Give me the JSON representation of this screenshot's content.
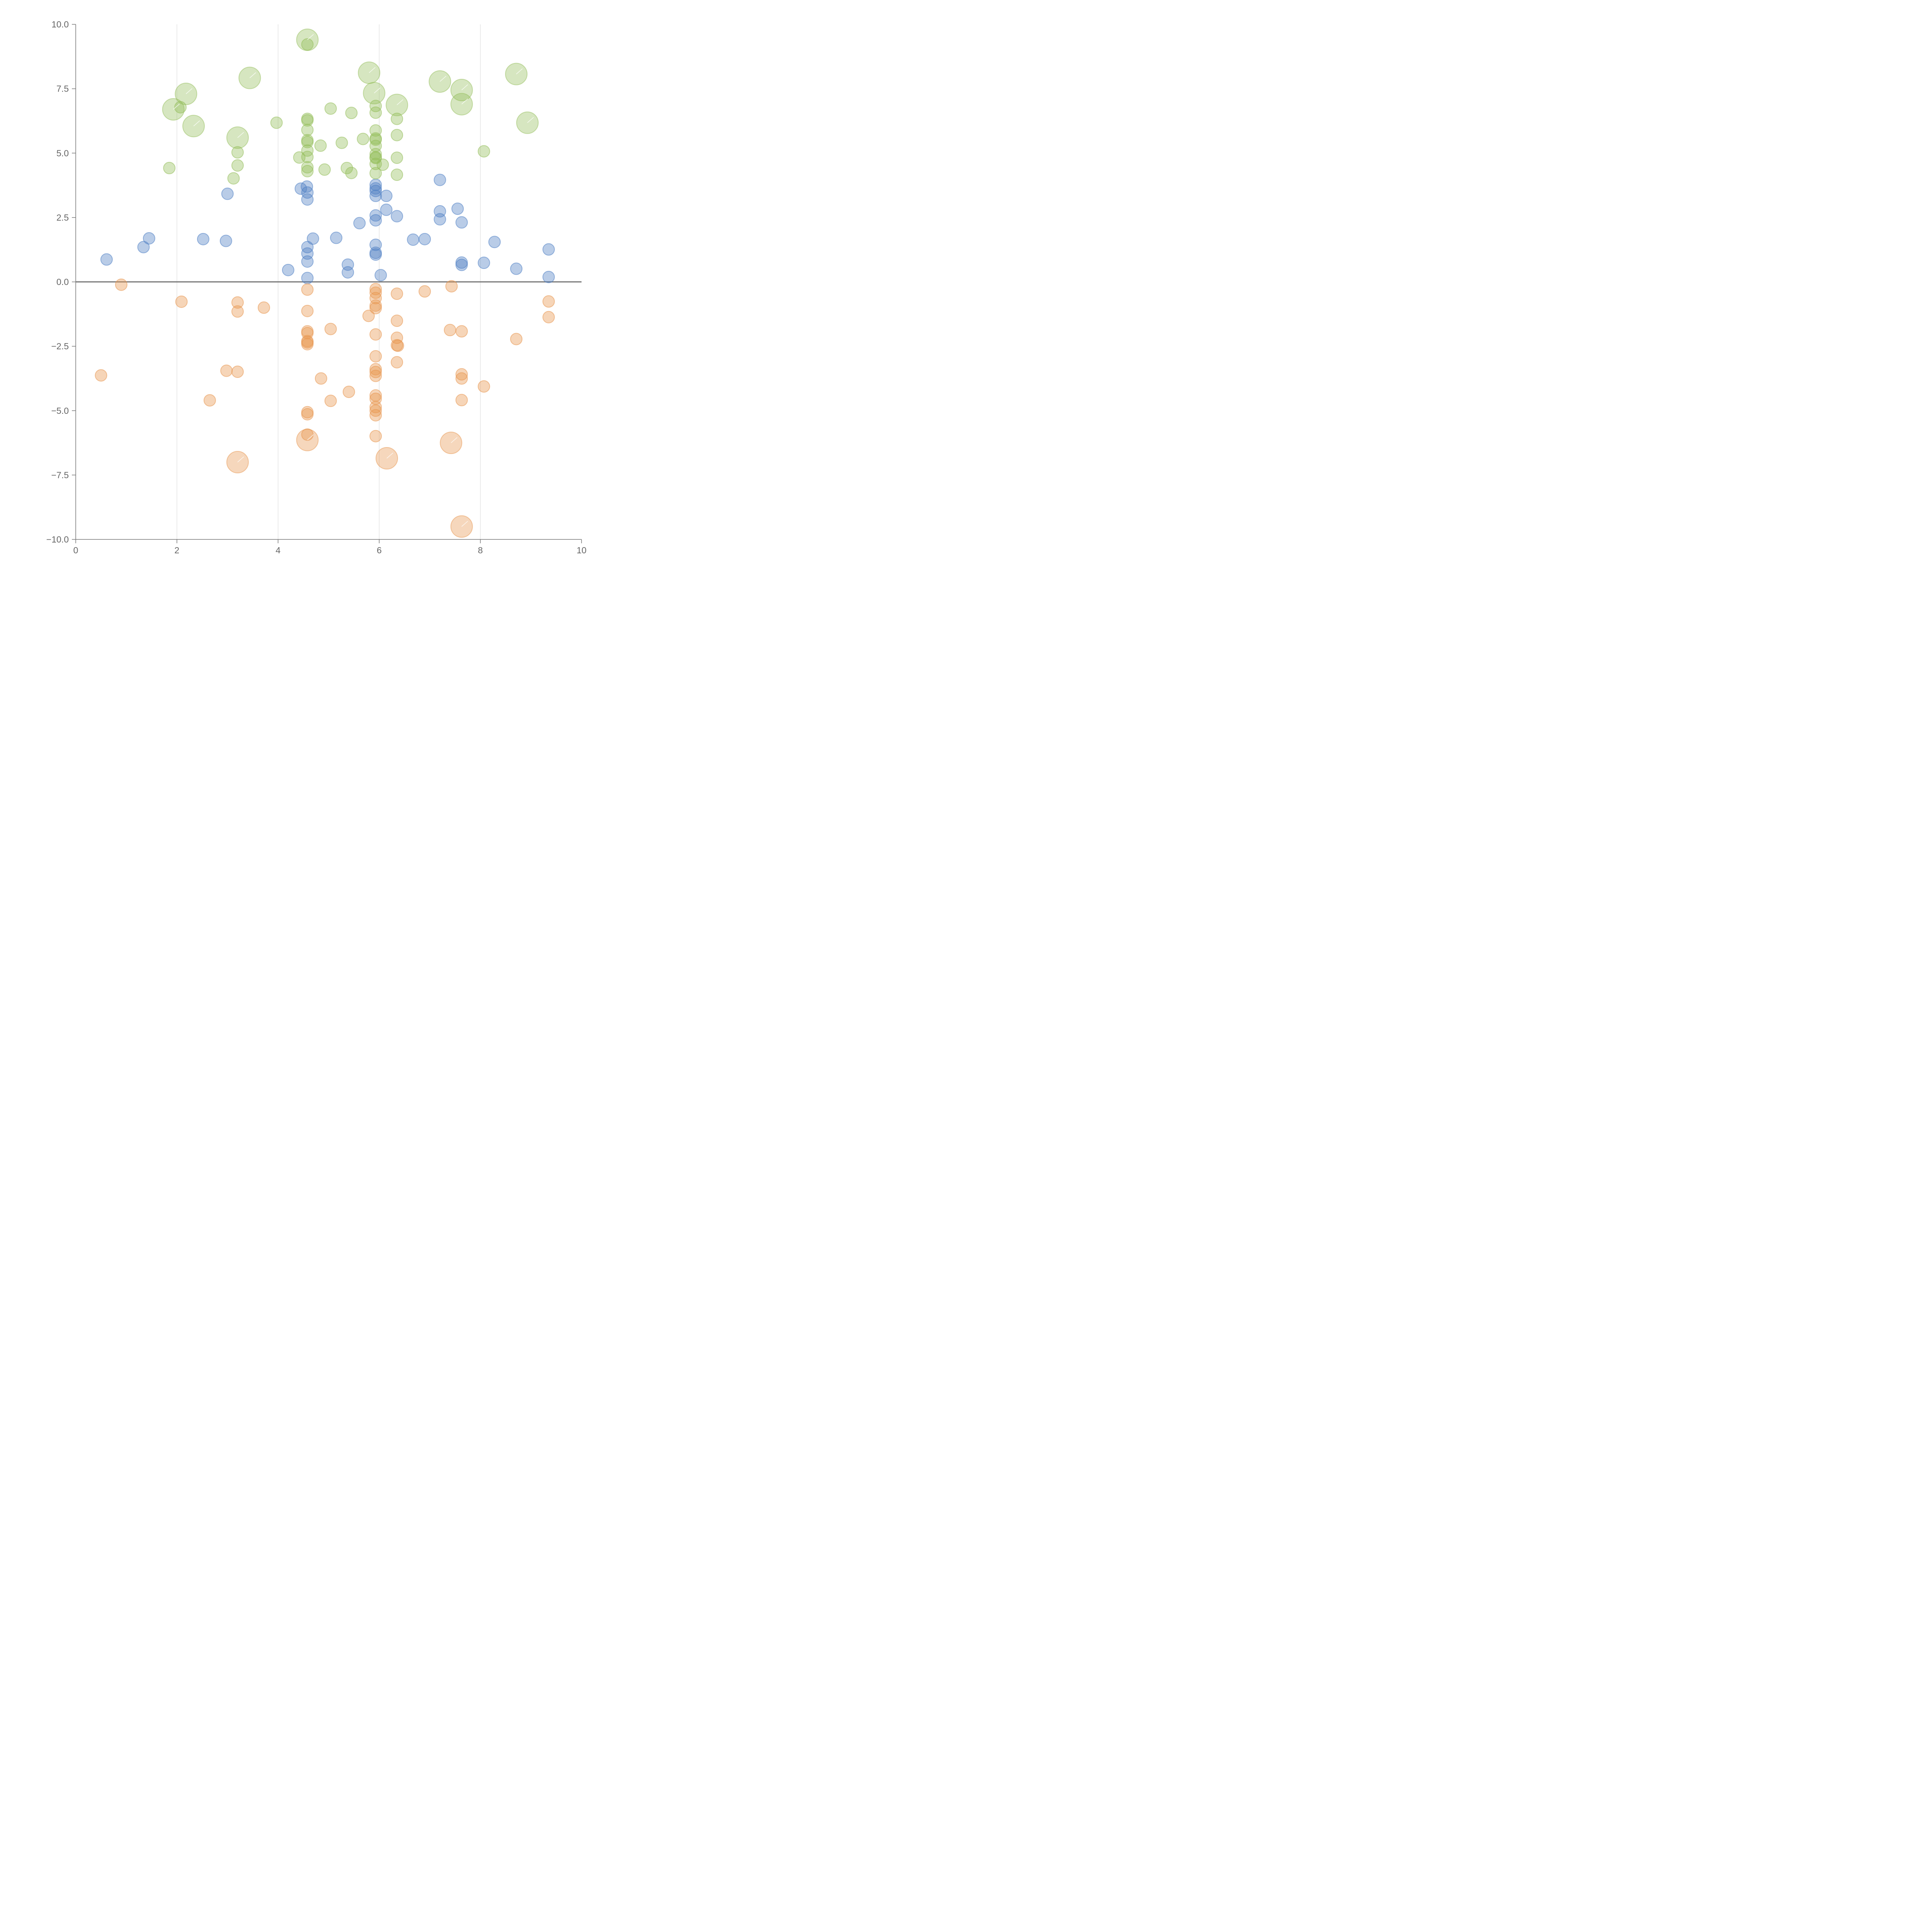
{
  "chart_data": {
    "type": "scatter",
    "title": "",
    "xlabel": "",
    "ylabel": "",
    "xlim": [
      0,
      10
    ],
    "ylim": [
      -10,
      10
    ],
    "x_ticks": [
      "0",
      "2",
      "4",
      "6",
      "8",
      "10"
    ],
    "y_ticks": [
      "10.0",
      "7.5",
      "5.0",
      "2.5",
      "0.0",
      "−2.5",
      "−5.0",
      "−7.5",
      "−10.0"
    ],
    "grid": "vertical",
    "zero_line": true,
    "colors": {
      "blue": "#4f7fc4",
      "orange": "#e8954e",
      "green": "#94bd5a"
    },
    "series": [
      {
        "color": "#4f7fc4",
        "points": [
          [
            0.61,
            0.87
          ],
          [
            1.34,
            1.35
          ],
          [
            1.45,
            1.69
          ],
          [
            2.52,
            1.66
          ],
          [
            2.97,
            1.59
          ],
          [
            3.0,
            3.42
          ],
          [
            4.2,
            0.46
          ],
          [
            4.45,
            3.62
          ],
          [
            4.57,
            3.7
          ],
          [
            4.58,
            3.47
          ],
          [
            4.58,
            3.2
          ],
          [
            4.58,
            1.35
          ],
          [
            4.58,
            1.1
          ],
          [
            4.58,
            0.79
          ],
          [
            4.58,
            0.15
          ],
          [
            4.69,
            1.68
          ],
          [
            5.15,
            1.71
          ],
          [
            5.38,
            0.67
          ],
          [
            5.38,
            0.37
          ],
          [
            5.61,
            2.28
          ],
          [
            5.93,
            3.77
          ],
          [
            5.93,
            3.63
          ],
          [
            5.93,
            3.53
          ],
          [
            5.93,
            3.34
          ],
          [
            5.93,
            2.58
          ],
          [
            5.93,
            2.39
          ],
          [
            5.93,
            1.44
          ],
          [
            5.93,
            1.13
          ],
          [
            5.93,
            1.06
          ],
          [
            6.03,
            0.26
          ],
          [
            6.14,
            3.34
          ],
          [
            6.14,
            2.8
          ],
          [
            6.35,
            2.55
          ],
          [
            6.67,
            1.64
          ],
          [
            6.9,
            1.66
          ],
          [
            7.2,
            3.96
          ],
          [
            7.2,
            2.74
          ],
          [
            7.2,
            2.43
          ],
          [
            7.55,
            2.84
          ],
          [
            7.63,
            2.31
          ],
          [
            7.63,
            0.75
          ],
          [
            7.63,
            0.66
          ],
          [
            8.07,
            0.74
          ],
          [
            8.28,
            1.55
          ],
          [
            8.71,
            0.51
          ],
          [
            9.35,
            1.26
          ],
          [
            9.35,
            0.19
          ]
        ]
      },
      {
        "color": "#e8954e",
        "points": [
          [
            0.5,
            -3.63
          ],
          [
            0.9,
            -0.11
          ],
          [
            2.09,
            -0.77
          ],
          [
            2.65,
            -4.6
          ],
          [
            2.98,
            -3.45
          ],
          [
            3.2,
            -0.8
          ],
          [
            3.2,
            -1.15
          ],
          [
            3.2,
            -3.49
          ],
          [
            3.72,
            -1.0
          ],
          [
            4.58,
            -0.3
          ],
          [
            4.58,
            -1.13
          ],
          [
            4.58,
            -1.92
          ],
          [
            4.58,
            -1.99
          ],
          [
            4.58,
            -2.3
          ],
          [
            4.58,
            -2.42
          ],
          [
            4.58,
            -2.35
          ],
          [
            4.58,
            -5.06
          ],
          [
            4.58,
            -5.14
          ],
          [
            4.58,
            -5.93
          ],
          [
            4.85,
            -3.75
          ],
          [
            5.04,
            -1.83
          ],
          [
            5.04,
            -4.62
          ],
          [
            5.4,
            -4.27
          ],
          [
            5.79,
            -1.32
          ],
          [
            5.93,
            -0.28
          ],
          [
            5.93,
            -0.42
          ],
          [
            5.93,
            -0.63
          ],
          [
            5.93,
            -0.92
          ],
          [
            5.93,
            -1.02
          ],
          [
            5.93,
            -2.04
          ],
          [
            5.93,
            -2.89
          ],
          [
            5.93,
            -3.39
          ],
          [
            5.93,
            -3.5
          ],
          [
            5.93,
            -3.65
          ],
          [
            5.93,
            -4.41
          ],
          [
            5.93,
            -4.54
          ],
          [
            5.93,
            -4.86
          ],
          [
            5.93,
            -5.0
          ],
          [
            5.93,
            -5.18
          ],
          [
            5.93,
            -5.99
          ],
          [
            6.35,
            -0.46
          ],
          [
            6.35,
            -1.51
          ],
          [
            6.35,
            -2.17
          ],
          [
            6.35,
            -2.46
          ],
          [
            6.37,
            -2.48
          ],
          [
            6.35,
            -3.12
          ],
          [
            6.9,
            -0.37
          ],
          [
            7.4,
            -1.87
          ],
          [
            7.43,
            -0.17
          ],
          [
            7.63,
            -1.92
          ],
          [
            7.63,
            -3.59
          ],
          [
            7.63,
            -3.75
          ],
          [
            7.63,
            -4.59
          ],
          [
            8.07,
            -4.06
          ],
          [
            8.71,
            -2.22
          ],
          [
            9.35,
            -0.76
          ],
          [
            9.35,
            -1.37
          ]
        ],
        "bubbles": [
          [
            3.2,
            -7.0
          ],
          [
            4.58,
            -6.14
          ],
          [
            6.15,
            -6.85
          ],
          [
            7.42,
            -6.25
          ],
          [
            7.63,
            -9.5
          ]
        ]
      },
      {
        "color": "#94bd5a",
        "points": [
          [
            1.85,
            4.42
          ],
          [
            2.07,
            6.78
          ],
          [
            3.12,
            4.02
          ],
          [
            3.2,
            5.03
          ],
          [
            3.2,
            4.52
          ],
          [
            3.97,
            6.18
          ],
          [
            4.42,
            4.83
          ],
          [
            4.58,
            9.22
          ],
          [
            4.58,
            6.33
          ],
          [
            4.58,
            6.27
          ],
          [
            4.58,
            5.9
          ],
          [
            4.58,
            5.5
          ],
          [
            4.58,
            5.43
          ],
          [
            4.58,
            5.1
          ],
          [
            4.58,
            4.85
          ],
          [
            4.58,
            4.45
          ],
          [
            4.58,
            4.3
          ],
          [
            4.84,
            5.29
          ],
          [
            4.92,
            4.36
          ],
          [
            5.04,
            6.73
          ],
          [
            5.26,
            5.4
          ],
          [
            5.36,
            4.42
          ],
          [
            5.45,
            4.23
          ],
          [
            5.45,
            6.56
          ],
          [
            5.68,
            5.55
          ],
          [
            5.93,
            6.83
          ],
          [
            5.93,
            6.57
          ],
          [
            5.93,
            5.88
          ],
          [
            5.93,
            5.57
          ],
          [
            5.93,
            5.52
          ],
          [
            5.93,
            5.28
          ],
          [
            5.93,
            4.96
          ],
          [
            5.93,
            4.84
          ],
          [
            5.93,
            4.81
          ],
          [
            5.93,
            4.58
          ],
          [
            5.93,
            4.22
          ],
          [
            6.07,
            4.55
          ],
          [
            6.35,
            6.33
          ],
          [
            6.35,
            5.7
          ],
          [
            6.35,
            4.82
          ],
          [
            6.35,
            4.16
          ],
          [
            8.07,
            5.07
          ]
        ],
        "bubbles": [
          [
            1.93,
            6.7
          ],
          [
            2.18,
            7.3
          ],
          [
            2.33,
            6.05
          ],
          [
            3.2,
            5.6
          ],
          [
            3.44,
            7.92
          ],
          [
            4.58,
            9.4
          ],
          [
            5.8,
            8.12
          ],
          [
            5.9,
            7.33
          ],
          [
            6.35,
            6.87
          ],
          [
            7.2,
            7.78
          ],
          [
            7.63,
            7.45
          ],
          [
            7.63,
            6.9
          ],
          [
            8.71,
            8.07
          ],
          [
            8.93,
            6.18
          ]
        ]
      }
    ]
  }
}
